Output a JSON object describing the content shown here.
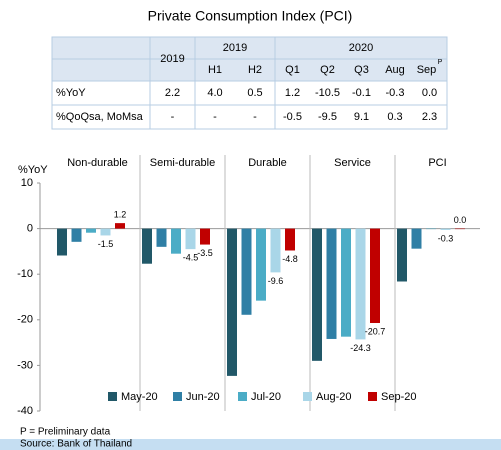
{
  "title": "Private Consumption Index (PCI)",
  "table": {
    "year_headers": [
      "2019",
      "2019",
      "2020"
    ],
    "sub_headers": [
      "H1",
      "H2",
      "Q1",
      "Q2",
      "Q3",
      "Aug",
      "Sep"
    ],
    "sep_mark": "P",
    "rows": [
      [
        "%YoY",
        "2.2",
        "4.0",
        "0.5",
        "1.2",
        "-10.5",
        "-0.1",
        "-0.3",
        "0.0"
      ],
      [
        "%QoQsa, MoMsa",
        "-",
        "-",
        "-",
        "-0.5",
        "-9.5",
        "9.1",
        "0.3",
        "2.3"
      ]
    ]
  },
  "chart_data": {
    "type": "bar",
    "y_label": "%YoY",
    "categories": [
      "Non-durable",
      "Semi-durable",
      "Durable",
      "Service",
      "PCI"
    ],
    "series": [
      {
        "name": "May-20",
        "color": "#215868",
        "values": [
          -5.9,
          -7.7,
          -32.3,
          -29.0,
          -11.6
        ]
      },
      {
        "name": "Jun-20",
        "color": "#2f7fa5",
        "values": [
          -2.9,
          -4.0,
          -18.9,
          -24.2,
          -4.4
        ]
      },
      {
        "name": "Jul-20",
        "color": "#4bacc6",
        "values": [
          -0.9,
          -5.5,
          -15.8,
          -23.7,
          -0.1
        ]
      },
      {
        "name": "Aug-20",
        "color": "#a9d6e8",
        "values": [
          -1.5,
          -4.5,
          -9.6,
          -24.3,
          -0.3
        ],
        "data_labels": true,
        "label_color": "#222222"
      },
      {
        "name": "Sep-20",
        "color": "#c00000",
        "values": [
          1.2,
          -3.5,
          -4.8,
          -20.7,
          0.0
        ],
        "value_labels": [
          "1.2",
          "-3.5",
          "-4.8",
          "-20.7",
          "0.0"
        ],
        "data_labels": true,
        "label_color": "#c00000"
      }
    ],
    "ylim": [
      -40,
      10
    ],
    "yticks": [
      -40,
      -30,
      -20,
      -10,
      0,
      10
    ],
    "legend": "bottom"
  },
  "notes": [
    "P = Preliminary data",
    "Source: Bank of Thailand"
  ]
}
